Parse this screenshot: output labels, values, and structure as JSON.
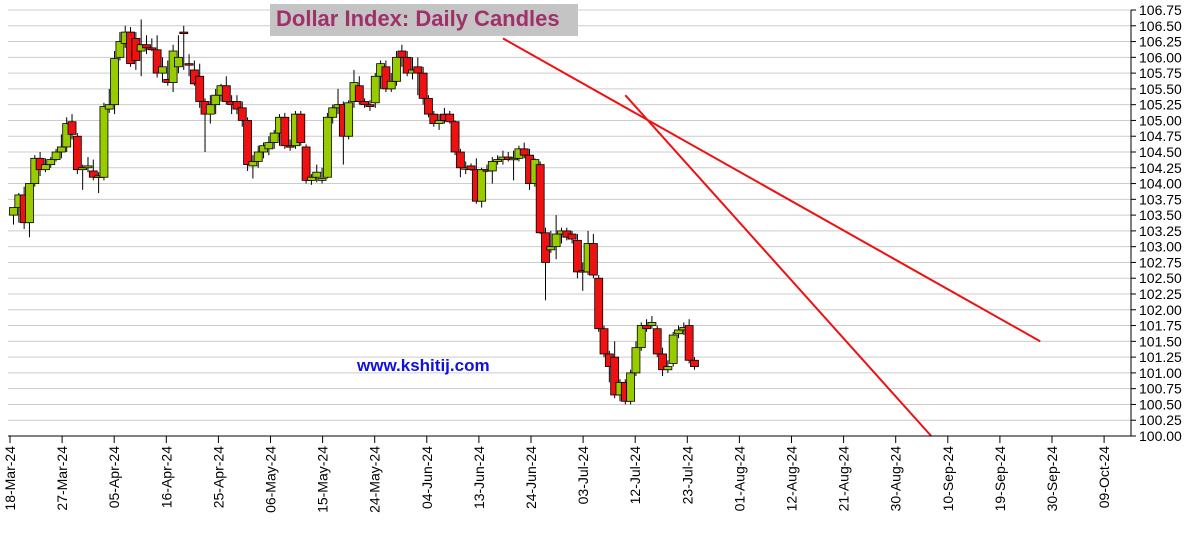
{
  "chart_data": {
    "type": "candlestick",
    "title": "Dollar Index: Daily Candles",
    "watermark": "www.kshitij.com",
    "ylim": [
      100.0,
      106.75
    ],
    "y_ticks": [
      "100.00",
      "100.25",
      "100.50",
      "100.75",
      "101.00",
      "101.25",
      "101.50",
      "101.75",
      "102.00",
      "102.25",
      "102.50",
      "102.75",
      "103.00",
      "103.25",
      "103.50",
      "103.75",
      "104.00",
      "104.25",
      "104.50",
      "104.75",
      "105.00",
      "105.25",
      "105.50",
      "105.75",
      "106.00",
      "106.25",
      "106.50",
      "106.75"
    ],
    "x_ticks": [
      "18-Mar-24",
      "27-Mar-24",
      "05-Apr-24",
      "16-Apr-24",
      "25-Apr-24",
      "06-May-24",
      "15-May-24",
      "24-May-24",
      "04-Jun-24",
      "13-Jun-24",
      "24-Jun-24",
      "03-Jul-24",
      "12-Jul-24",
      "23-Jul-24",
      "01-Aug-24",
      "12-Aug-24",
      "21-Aug-24",
      "30-Aug-24",
      "10-Sep-24",
      "19-Sep-24",
      "30-Sep-24",
      "09-Oct-24"
    ],
    "y_axis_side": "right",
    "grid": "horizontal",
    "colors": {
      "up": "#99cc00",
      "down": "#ee1111",
      "trendline": "#ee1111",
      "title": "#a0306a",
      "title_box": "#c4c4c4",
      "watermark": "#1010e0",
      "grid": "#cccccc"
    },
    "candles": [
      {
        "o": 103.5,
        "h": 103.62,
        "l": 103.35,
        "c": 103.62
      },
      {
        "o": 103.62,
        "h": 103.85,
        "l": 103.38,
        "c": 103.82
      },
      {
        "o": 103.82,
        "h": 103.95,
        "l": 103.28,
        "c": 103.38
      },
      {
        "o": 103.38,
        "h": 104.0,
        "l": 103.15,
        "c": 104.0
      },
      {
        "o": 104.0,
        "h": 104.45,
        "l": 103.95,
        "c": 104.4
      },
      {
        "o": 104.4,
        "h": 104.5,
        "l": 104.12,
        "c": 104.22
      },
      {
        "o": 104.22,
        "h": 104.4,
        "l": 104.18,
        "c": 104.3
      },
      {
        "o": 104.3,
        "h": 104.42,
        "l": 104.25,
        "c": 104.38
      },
      {
        "o": 104.38,
        "h": 104.55,
        "l": 104.35,
        "c": 104.5
      },
      {
        "o": 104.5,
        "h": 104.78,
        "l": 104.4,
        "c": 104.58
      },
      {
        "o": 104.58,
        "h": 105.05,
        "l": 104.5,
        "c": 104.95
      },
      {
        "o": 104.98,
        "h": 105.1,
        "l": 104.7,
        "c": 104.78
      },
      {
        "o": 104.75,
        "h": 104.8,
        "l": 104.15,
        "c": 104.22
      },
      {
        "o": 104.22,
        "h": 104.3,
        "l": 103.9,
        "c": 104.25
      },
      {
        "o": 104.25,
        "h": 104.42,
        "l": 104.18,
        "c": 104.28
      },
      {
        "o": 104.2,
        "h": 104.38,
        "l": 104.05,
        "c": 104.1
      },
      {
        "o": 104.1,
        "h": 104.18,
        "l": 103.85,
        "c": 104.12
      },
      {
        "o": 104.1,
        "h": 105.28,
        "l": 104.05,
        "c": 105.22
      },
      {
        "o": 105.18,
        "h": 105.5,
        "l": 105.12,
        "c": 105.25
      },
      {
        "o": 105.25,
        "h": 106.1,
        "l": 105.1,
        "c": 105.98
      },
      {
        "o": 106.0,
        "h": 106.4,
        "l": 105.95,
        "c": 106.25
      },
      {
        "o": 106.22,
        "h": 106.5,
        "l": 106.15,
        "c": 106.4
      },
      {
        "o": 106.4,
        "h": 106.48,
        "l": 105.85,
        "c": 105.9
      },
      {
        "o": 106.3,
        "h": 106.4,
        "l": 105.8,
        "c": 105.95
      },
      {
        "o": 106.1,
        "h": 106.6,
        "l": 105.7,
        "c": 106.2
      },
      {
        "o": 106.2,
        "h": 106.35,
        "l": 106.05,
        "c": 106.15
      },
      {
        "o": 106.15,
        "h": 106.3,
        "l": 106.1,
        "c": 106.12
      },
      {
        "o": 106.12,
        "h": 106.35,
        "l": 105.68,
        "c": 105.75
      },
      {
        "o": 105.75,
        "h": 106.0,
        "l": 105.6,
        "c": 105.85
      },
      {
        "o": 105.65,
        "h": 105.95,
        "l": 105.55,
        "c": 105.6
      },
      {
        "o": 105.6,
        "h": 106.2,
        "l": 105.45,
        "c": 106.1
      },
      {
        "o": 105.85,
        "h": 106.35,
        "l": 105.75,
        "c": 106.0
      },
      {
        "o": 106.4,
        "h": 106.5,
        "l": 105.8,
        "c": 106.38
      },
      {
        "o": 105.9,
        "h": 106.05,
        "l": 105.7,
        "c": 105.88
      },
      {
        "o": 105.8,
        "h": 105.95,
        "l": 105.55,
        "c": 105.58
      },
      {
        "o": 105.7,
        "h": 105.9,
        "l": 105.2,
        "c": 105.3
      },
      {
        "o": 105.3,
        "h": 105.35,
        "l": 104.5,
        "c": 105.1
      },
      {
        "o": 105.1,
        "h": 105.4,
        "l": 104.95,
        "c": 105.25
      },
      {
        "o": 105.25,
        "h": 105.5,
        "l": 105.1,
        "c": 105.4
      },
      {
        "o": 105.4,
        "h": 105.58,
        "l": 105.3,
        "c": 105.55
      },
      {
        "o": 105.55,
        "h": 105.7,
        "l": 105.25,
        "c": 105.3
      },
      {
        "o": 105.3,
        "h": 105.4,
        "l": 105.1,
        "c": 105.25
      },
      {
        "o": 105.3,
        "h": 105.4,
        "l": 105.1,
        "c": 105.18
      },
      {
        "o": 105.2,
        "h": 105.3,
        "l": 104.9,
        "c": 105.0
      },
      {
        "o": 105.0,
        "h": 105.05,
        "l": 104.2,
        "c": 104.3
      },
      {
        "o": 104.28,
        "h": 104.45,
        "l": 104.08,
        "c": 104.35
      },
      {
        "o": 104.35,
        "h": 104.6,
        "l": 104.25,
        "c": 104.5
      },
      {
        "o": 104.5,
        "h": 104.65,
        "l": 104.4,
        "c": 104.6
      },
      {
        "o": 104.55,
        "h": 104.75,
        "l": 104.45,
        "c": 104.65
      },
      {
        "o": 104.65,
        "h": 104.85,
        "l": 104.55,
        "c": 104.8
      },
      {
        "o": 104.8,
        "h": 105.1,
        "l": 104.6,
        "c": 105.05
      },
      {
        "o": 105.05,
        "h": 105.12,
        "l": 104.55,
        "c": 104.6
      },
      {
        "o": 104.6,
        "h": 104.7,
        "l": 104.52,
        "c": 104.58
      },
      {
        "o": 104.6,
        "h": 105.15,
        "l": 104.55,
        "c": 105.1
      },
      {
        "o": 105.1,
        "h": 105.15,
        "l": 104.6,
        "c": 104.65
      },
      {
        "o": 104.58,
        "h": 104.62,
        "l": 104.0,
        "c": 104.05
      },
      {
        "o": 104.05,
        "h": 104.15,
        "l": 103.98,
        "c": 104.1
      },
      {
        "o": 104.1,
        "h": 104.3,
        "l": 104.02,
        "c": 104.18
      },
      {
        "o": 104.05,
        "h": 104.25,
        "l": 104.0,
        "c": 104.08
      },
      {
        "o": 104.1,
        "h": 105.12,
        "l": 104.08,
        "c": 105.05
      },
      {
        "o": 105.05,
        "h": 105.25,
        "l": 104.95,
        "c": 105.2
      },
      {
        "o": 105.2,
        "h": 105.5,
        "l": 105.1,
        "c": 105.25
      },
      {
        "o": 105.25,
        "h": 105.3,
        "l": 104.3,
        "c": 104.75
      },
      {
        "o": 104.75,
        "h": 105.32,
        "l": 104.7,
        "c": 105.28
      },
      {
        "o": 105.3,
        "h": 105.8,
        "l": 105.2,
        "c": 105.6
      },
      {
        "o": 105.55,
        "h": 105.7,
        "l": 105.25,
        "c": 105.3
      },
      {
        "o": 105.3,
        "h": 105.35,
        "l": 105.2,
        "c": 105.25
      },
      {
        "o": 105.25,
        "h": 105.32,
        "l": 105.15,
        "c": 105.22
      },
      {
        "o": 105.28,
        "h": 105.75,
        "l": 105.2,
        "c": 105.7
      },
      {
        "o": 105.7,
        "h": 105.95,
        "l": 105.5,
        "c": 105.9
      },
      {
        "o": 105.85,
        "h": 105.95,
        "l": 105.45,
        "c": 105.5
      },
      {
        "o": 105.5,
        "h": 105.75,
        "l": 105.45,
        "c": 105.62
      },
      {
        "o": 105.62,
        "h": 106.1,
        "l": 105.55,
        "c": 106.0
      },
      {
        "o": 106.1,
        "h": 106.2,
        "l": 105.85,
        "c": 106.0
      },
      {
        "o": 106.0,
        "h": 106.1,
        "l": 105.7,
        "c": 105.75
      },
      {
        "o": 105.75,
        "h": 106.0,
        "l": 105.65,
        "c": 105.8
      },
      {
        "o": 105.85,
        "h": 106.0,
        "l": 105.4,
        "c": 105.75
      },
      {
        "o": 105.75,
        "h": 105.85,
        "l": 105.25,
        "c": 105.35
      },
      {
        "o": 105.35,
        "h": 105.4,
        "l": 105.05,
        "c": 105.1
      },
      {
        "o": 105.1,
        "h": 105.15,
        "l": 104.9,
        "c": 104.95
      },
      {
        "o": 104.95,
        "h": 105.1,
        "l": 104.85,
        "c": 105.0
      },
      {
        "o": 105.1,
        "h": 105.2,
        "l": 104.95,
        "c": 105.0
      },
      {
        "o": 105.1,
        "h": 105.15,
        "l": 104.95,
        "c": 104.98
      },
      {
        "o": 104.98,
        "h": 105.0,
        "l": 104.45,
        "c": 104.5
      },
      {
        "o": 104.5,
        "h": 104.55,
        "l": 104.1,
        "c": 104.25
      },
      {
        "o": 104.25,
        "h": 104.35,
        "l": 104.15,
        "c": 104.25
      },
      {
        "o": 104.28,
        "h": 104.32,
        "l": 104.2,
        "c": 104.22
      },
      {
        "o": 104.22,
        "h": 104.4,
        "l": 103.68,
        "c": 103.72
      },
      {
        "o": 103.72,
        "h": 104.25,
        "l": 103.62,
        "c": 104.22
      },
      {
        "o": 104.22,
        "h": 104.3,
        "l": 104.18,
        "c": 104.2
      },
      {
        "o": 104.2,
        "h": 104.42,
        "l": 104.0,
        "c": 104.35
      },
      {
        "o": 104.35,
        "h": 104.45,
        "l": 104.3,
        "c": 104.38
      },
      {
        "o": 104.38,
        "h": 104.52,
        "l": 104.3,
        "c": 104.42
      },
      {
        "o": 104.42,
        "h": 104.5,
        "l": 104.35,
        "c": 104.38
      },
      {
        "o": 104.38,
        "h": 104.52,
        "l": 104.05,
        "c": 104.4
      },
      {
        "o": 104.4,
        "h": 104.6,
        "l": 104.35,
        "c": 104.55
      },
      {
        "o": 104.55,
        "h": 104.65,
        "l": 104.4,
        "c": 104.45
      },
      {
        "o": 104.45,
        "h": 104.55,
        "l": 103.9,
        "c": 104.0
      },
      {
        "o": 104.0,
        "h": 104.4,
        "l": 103.95,
        "c": 104.38
      },
      {
        "o": 104.3,
        "h": 104.35,
        "l": 103.2,
        "c": 103.22
      },
      {
        "o": 103.22,
        "h": 103.3,
        "l": 102.15,
        "c": 102.75
      },
      {
        "o": 102.95,
        "h": 103.25,
        "l": 102.9,
        "c": 103.0
      },
      {
        "o": 103.0,
        "h": 103.5,
        "l": 102.8,
        "c": 103.2
      },
      {
        "o": 103.2,
        "h": 103.3,
        "l": 103.05,
        "c": 103.25
      },
      {
        "o": 103.25,
        "h": 103.3,
        "l": 103.1,
        "c": 103.15
      },
      {
        "o": 103.2,
        "h": 103.25,
        "l": 103.05,
        "c": 103.12
      },
      {
        "o": 103.1,
        "h": 103.2,
        "l": 102.5,
        "c": 102.6
      },
      {
        "o": 102.62,
        "h": 102.75,
        "l": 102.3,
        "c": 102.6
      },
      {
        "o": 102.6,
        "h": 103.25,
        "l": 102.55,
        "c": 103.05
      },
      {
        "o": 103.05,
        "h": 103.2,
        "l": 102.5,
        "c": 102.55
      },
      {
        "o": 102.5,
        "h": 102.55,
        "l": 101.65,
        "c": 101.7
      },
      {
        "o": 101.7,
        "h": 101.75,
        "l": 101.25,
        "c": 101.3
      },
      {
        "o": 101.3,
        "h": 101.35,
        "l": 100.85,
        "c": 101.1
      },
      {
        "o": 101.25,
        "h": 101.5,
        "l": 100.6,
        "c": 100.65
      },
      {
        "o": 100.65,
        "h": 100.9,
        "l": 100.55,
        "c": 100.85
      },
      {
        "o": 100.85,
        "h": 100.9,
        "l": 100.5,
        "c": 100.55
      },
      {
        "o": 100.55,
        "h": 101.05,
        "l": 100.5,
        "c": 101.0
      },
      {
        "o": 101.0,
        "h": 101.5,
        "l": 100.95,
        "c": 101.4
      },
      {
        "o": 101.4,
        "h": 101.8,
        "l": 101.35,
        "c": 101.75
      },
      {
        "o": 101.75,
        "h": 101.85,
        "l": 101.65,
        "c": 101.7
      },
      {
        "o": 101.75,
        "h": 101.9,
        "l": 101.7,
        "c": 101.8
      },
      {
        "o": 101.7,
        "h": 101.75,
        "l": 101.25,
        "c": 101.3
      },
      {
        "o": 101.3,
        "h": 101.4,
        "l": 100.95,
        "c": 101.05
      },
      {
        "o": 101.05,
        "h": 101.2,
        "l": 101.0,
        "c": 101.1
      },
      {
        "o": 101.15,
        "h": 101.65,
        "l": 101.1,
        "c": 101.6
      },
      {
        "o": 101.62,
        "h": 101.75,
        "l": 101.55,
        "c": 101.68
      },
      {
        "o": 101.68,
        "h": 101.8,
        "l": 101.6,
        "c": 101.72
      },
      {
        "o": 101.75,
        "h": 101.85,
        "l": 101.15,
        "c": 101.2
      },
      {
        "o": 101.2,
        "h": 101.25,
        "l": 101.05,
        "c": 101.1
      }
    ],
    "trendlines": [
      {
        "from": {
          "index": 92.0,
          "y": 106.3
        },
        "to": {
          "index": 193.0,
          "y": 101.5
        }
      },
      {
        "from": {
          "index": 115.0,
          "y": 105.4
        },
        "to": {
          "index": 172.5,
          "y": 100.0
        }
      }
    ]
  }
}
